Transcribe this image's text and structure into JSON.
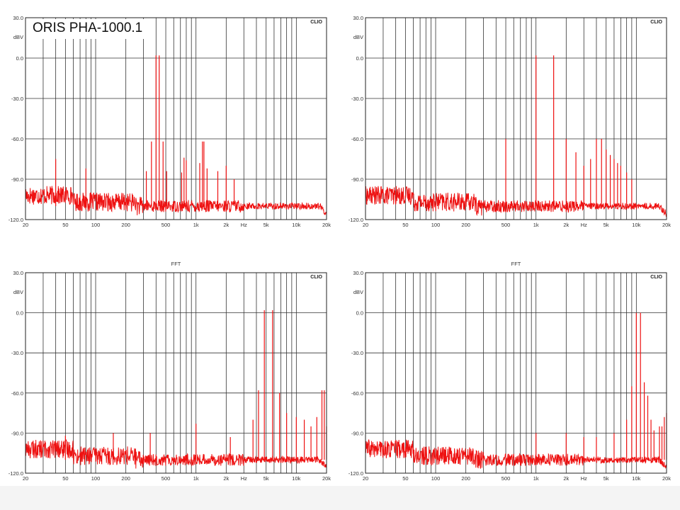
{
  "label": "ORIS PHA-1000.1",
  "colors": {
    "trace": "#ee1111",
    "grid": "#333333",
    "frame": "#222222"
  },
  "chart_data": [
    {
      "type": "line",
      "title": "",
      "brand": "CLIO",
      "ylabel": "dBV",
      "xscale": "log",
      "xlim": [
        20,
        20000
      ],
      "ylim": [
        -120,
        30
      ],
      "grid": true,
      "y_ticks": [
        "30.0",
        "0.0",
        "-30.0",
        "-60.0",
        "-90.0",
        "-120.0"
      ],
      "x_ticks": [
        "20",
        "50",
        "100",
        "200",
        "500",
        "1k",
        "2k",
        "Hz",
        "5k",
        "10k",
        "20k"
      ],
      "noise_floor": -110,
      "peaks": [
        [
          40,
          -75
        ],
        [
          80,
          -82
        ],
        [
          400,
          2
        ],
        [
          430,
          2
        ],
        [
          360,
          -62
        ],
        [
          470,
          -62
        ],
        [
          320,
          -84
        ],
        [
          510,
          -84
        ],
        [
          760,
          -74
        ],
        [
          800,
          -76
        ],
        [
          720,
          -85
        ],
        [
          1160,
          -62
        ],
        [
          1200,
          -62
        ],
        [
          1090,
          -78
        ],
        [
          1290,
          -82
        ],
        [
          1650,
          -84
        ],
        [
          2000,
          -80
        ],
        [
          2400,
          -90
        ]
      ]
    },
    {
      "type": "line",
      "title": "",
      "brand": "CLIO",
      "ylabel": "dBV",
      "xscale": "log",
      "xlim": [
        20,
        20000
      ],
      "ylim": [
        -120,
        30
      ],
      "grid": true,
      "y_ticks": [
        "30.0",
        "0.0",
        "-30.0",
        "-60.0",
        "-90.0",
        "-120.0"
      ],
      "x_ticks": [
        "20",
        "50",
        "100",
        "200",
        "500",
        "1k",
        "2k",
        "Hz",
        "5k",
        "10k",
        "20k"
      ],
      "noise_floor": -110,
      "peaks": [
        [
          500,
          -60
        ],
        [
          1000,
          2
        ],
        [
          1500,
          2
        ],
        [
          2000,
          -60
        ],
        [
          2500,
          -70
        ],
        [
          3000,
          -80
        ],
        [
          3500,
          -75
        ],
        [
          4000,
          -60
        ],
        [
          4500,
          -60
        ],
        [
          5000,
          -68
        ],
        [
          5500,
          -72
        ],
        [
          6000,
          -75
        ],
        [
          6500,
          -78
        ],
        [
          7000,
          -80
        ],
        [
          8000,
          -85
        ],
        [
          9000,
          -90
        ]
      ]
    },
    {
      "type": "line",
      "title": "FFT",
      "brand": "CLIO",
      "ylabel": "dBV",
      "xscale": "log",
      "xlim": [
        20,
        20000
      ],
      "ylim": [
        -120,
        30
      ],
      "grid": true,
      "y_ticks": [
        "30.0",
        "0.0",
        "-30.0",
        "-60.0",
        "-90.0",
        "-120.0"
      ],
      "x_ticks": [
        "20",
        "50",
        "100",
        "200",
        "500",
        "1k",
        "2k",
        "Hz",
        "5k",
        "10k",
        "20k"
      ],
      "noise_floor": -110,
      "peaks": [
        [
          50,
          -92
        ],
        [
          150,
          -90
        ],
        [
          350,
          -90
        ],
        [
          1000,
          -83
        ],
        [
          2200,
          -93
        ],
        [
          3700,
          -80
        ],
        [
          4200,
          -58
        ],
        [
          4800,
          2
        ],
        [
          5800,
          2
        ],
        [
          6800,
          -60
        ],
        [
          8000,
          -75
        ],
        [
          10000,
          -78
        ],
        [
          12000,
          -80
        ],
        [
          14000,
          -85
        ],
        [
          16000,
          -78
        ],
        [
          18000,
          -58
        ],
        [
          19000,
          -58
        ],
        [
          20000,
          -85
        ]
      ]
    },
    {
      "type": "line",
      "title": "FFT",
      "brand": "CLIO",
      "ylabel": "dBV",
      "xscale": "log",
      "xlim": [
        20,
        20000
      ],
      "ylim": [
        -120,
        30
      ],
      "grid": true,
      "y_ticks": [
        "30.0",
        "0.0",
        "-30.0",
        "-60.0",
        "-90.0",
        "-120.0"
      ],
      "x_ticks": [
        "20",
        "50",
        "100",
        "200",
        "500",
        "1k",
        "2k",
        "Hz",
        "5k",
        "10k",
        "20k"
      ],
      "noise_floor": -110,
      "peaks": [
        [
          1000,
          -90
        ],
        [
          2000,
          -90
        ],
        [
          3000,
          -93
        ],
        [
          4000,
          -93
        ],
        [
          6000,
          -90
        ],
        [
          8000,
          -80
        ],
        [
          9000,
          -55
        ],
        [
          10000,
          0
        ],
        [
          11000,
          0
        ],
        [
          12000,
          -52
        ],
        [
          13000,
          -62
        ],
        [
          14000,
          -80
        ],
        [
          15000,
          -88
        ],
        [
          17000,
          -85
        ],
        [
          18000,
          -85
        ],
        [
          19000,
          -78
        ],
        [
          20000,
          -75
        ]
      ]
    }
  ]
}
